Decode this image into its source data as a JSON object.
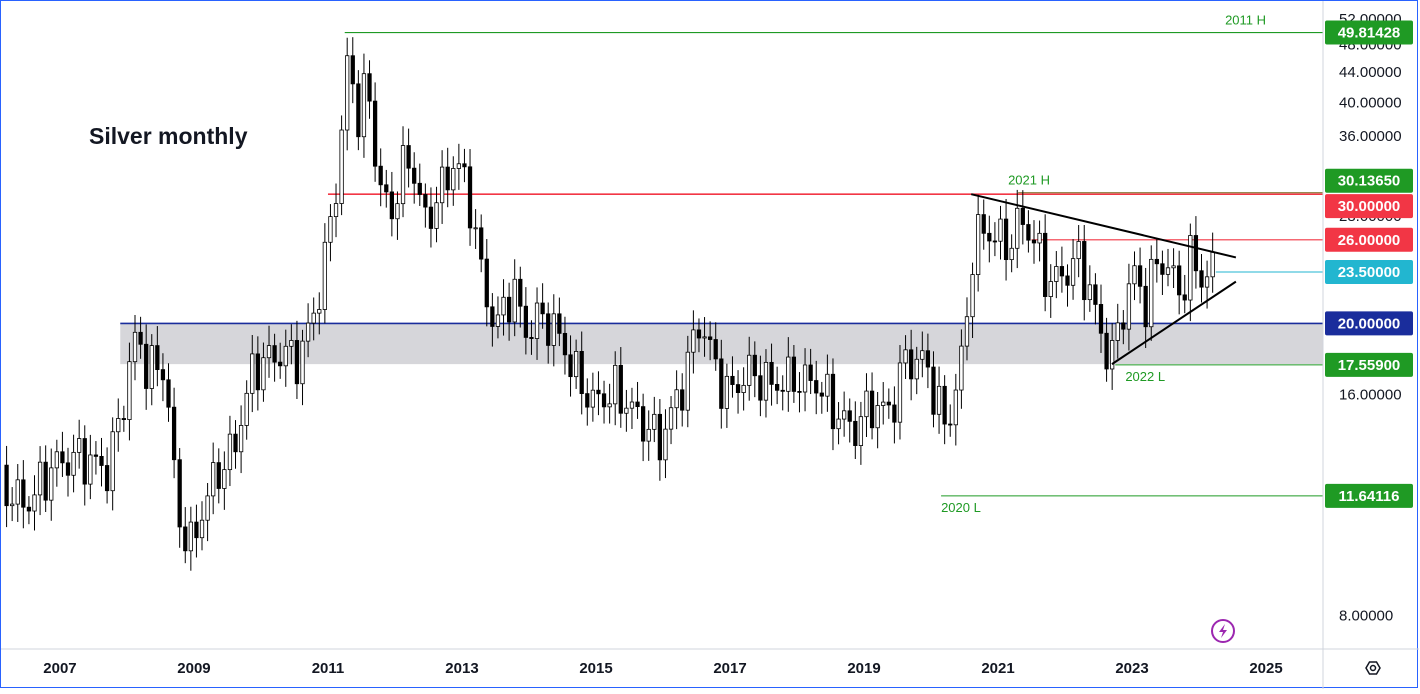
{
  "chart_data": {
    "type": "candlestick",
    "title": "Silver monthly",
    "y_axis": {
      "scale": "log",
      "range": [
        7.2,
        55.0
      ],
      "position": "right",
      "ticks": [
        "52.00000",
        "48.00000",
        "44.00000",
        "40.00000",
        "36.00000",
        "28.00000",
        "16.00000",
        "8.00000"
      ],
      "tick_values": [
        52,
        48,
        44,
        40,
        36,
        28,
        16,
        8
      ]
    },
    "x_axis": {
      "ticks": [
        "2007",
        "2009",
        "2011",
        "2013",
        "2015",
        "2017",
        "2019",
        "2021",
        "2023",
        "2025"
      ],
      "tick_values": [
        2007,
        2009,
        2011,
        2013,
        2015,
        2017,
        2019,
        2021,
        2023,
        2025
      ],
      "range": [
        2006.12,
        2025.85
      ]
    },
    "grid": false,
    "price_tags": [
      {
        "label": "49.81428",
        "value": 49.81428,
        "color": "#1f9a24"
      },
      {
        "label": "30.13650",
        "value": 30.1365,
        "color": "#1f9a24"
      },
      {
        "label": "30.00000",
        "value": 30.0,
        "color": "#f23645"
      },
      {
        "label": "26.00000",
        "value": 26.0,
        "color": "#f23645"
      },
      {
        "label": "23.50000",
        "value": 23.5,
        "color": "#22b6d0"
      },
      {
        "label": "20.00000",
        "value": 20.0,
        "color": "#1a2d9c"
      },
      {
        "label": "17.55900",
        "value": 17.559,
        "color": "#1f9a24"
      },
      {
        "label": "11.64116",
        "value": 11.64116,
        "color": "#1f9a24"
      }
    ],
    "annotations": [
      {
        "text": "2011 H",
        "x": 2025.0,
        "value": 49.81428,
        "color": "#1f9a24"
      },
      {
        "text": "2021 H",
        "x": 2021.15,
        "value": 30.1365,
        "color": "#1f9a24"
      },
      {
        "text": "2022 L",
        "x": 2022.9,
        "value": 17.559,
        "color": "#1f9a24"
      },
      {
        "text": "2020 L",
        "x": 2020.15,
        "value": 11.64116,
        "color": "#1f9a24"
      }
    ],
    "horizontal_lines": [
      {
        "value": 49.81428,
        "from": 2011.25,
        "to": 2025.85,
        "color": "#1f9a24"
      },
      {
        "value": 30.0,
        "from": 2011.0,
        "to": 2025.85,
        "color": "#f23645"
      },
      {
        "value": 30.1365,
        "from": 2021.3,
        "to": 2025.85,
        "color": "#8a7a3a"
      },
      {
        "value": 26.0,
        "from": 2021.5,
        "to": 2025.85,
        "color": "#f23645"
      },
      {
        "value": 23.5,
        "from": 2024.25,
        "to": 2025.85,
        "color": "#22b6d0"
      },
      {
        "value": 20.0,
        "from": 2007.9,
        "to": 2025.85,
        "color": "#1a2d9c"
      },
      {
        "value": 17.559,
        "from": 2022.75,
        "to": 2025.85,
        "color": "#1f9a24"
      },
      {
        "value": 11.64116,
        "from": 2020.15,
        "to": 2025.85,
        "color": "#1f9a24"
      }
    ],
    "zone": {
      "from_value": 17.6,
      "to_value": 20.0,
      "x_from": 2007.9,
      "x_to": 2025.85,
      "color": "#d6d6da"
    },
    "trendlines": [
      {
        "x1": 2020.6,
        "y1": 30.0,
        "x2": 2024.55,
        "y2": 24.6,
        "color": "#000000"
      },
      {
        "x1": 2022.7,
        "y1": 17.6,
        "x2": 2024.55,
        "y2": 22.8,
        "color": "#000000"
      }
    ],
    "monthly_close": [
      [
        2006.12,
        12.0
      ],
      [
        2006.5,
        11.3
      ],
      [
        2006.9,
        12.8
      ],
      [
        2007.3,
        13.2
      ],
      [
        2007.7,
        12.6
      ],
      [
        2007.9,
        14.8
      ],
      [
        2008.15,
        19.5
      ],
      [
        2008.3,
        17.3
      ],
      [
        2008.55,
        17.5
      ],
      [
        2008.75,
        11.0
      ],
      [
        2008.95,
        9.9
      ],
      [
        2009.3,
        12.3
      ],
      [
        2009.6,
        13.5
      ],
      [
        2009.9,
        17.5
      ],
      [
        2010.3,
        18.2
      ],
      [
        2010.6,
        18.0
      ],
      [
        2010.9,
        22.5
      ],
      [
        2011.05,
        28.0
      ],
      [
        2011.2,
        35.0
      ],
      [
        2011.3,
        47.0
      ],
      [
        2011.45,
        38.0
      ],
      [
        2011.6,
        42.5
      ],
      [
        2011.75,
        30.5
      ],
      [
        2011.95,
        28.5
      ],
      [
        2012.2,
        34.0
      ],
      [
        2012.45,
        27.5
      ],
      [
        2012.7,
        30.5
      ],
      [
        2012.9,
        33.5
      ],
      [
        2013.1,
        30.0
      ],
      [
        2013.3,
        23.0
      ],
      [
        2013.5,
        19.5
      ],
      [
        2013.75,
        22.5
      ],
      [
        2013.95,
        19.5
      ],
      [
        2014.2,
        20.5
      ],
      [
        2014.45,
        19.2
      ],
      [
        2014.7,
        17.0
      ],
      [
        2014.95,
        15.6
      ],
      [
        2015.3,
        16.2
      ],
      [
        2015.6,
        15.0
      ],
      [
        2015.95,
        13.8
      ],
      [
        2016.25,
        16.0
      ],
      [
        2016.55,
        20.2
      ],
      [
        2016.8,
        17.3
      ],
      [
        2016.95,
        16.0
      ],
      [
        2017.3,
        17.2
      ],
      [
        2017.6,
        16.5
      ],
      [
        2017.95,
        16.8
      ],
      [
        2018.3,
        16.6
      ],
      [
        2018.6,
        15.0
      ],
      [
        2018.85,
        14.3
      ],
      [
        2019.1,
        15.5
      ],
      [
        2019.4,
        15.1
      ],
      [
        2019.6,
        17.8
      ],
      [
        2019.9,
        17.8
      ],
      [
        2020.2,
        14.5
      ],
      [
        2020.3,
        15.2
      ],
      [
        2020.5,
        18.5
      ],
      [
        2020.6,
        24.5
      ],
      [
        2020.75,
        27.0
      ],
      [
        2020.95,
        26.3
      ],
      [
        2021.15,
        25.5
      ],
      [
        2021.35,
        27.8
      ],
      [
        2021.55,
        25.8
      ],
      [
        2021.75,
        22.7
      ],
      [
        2021.95,
        23.2
      ],
      [
        2022.2,
        24.5
      ],
      [
        2022.35,
        22.5
      ],
      [
        2022.55,
        19.0
      ],
      [
        2022.7,
        18.0
      ],
      [
        2022.9,
        21.5
      ],
      [
        2023.05,
        23.5
      ],
      [
        2023.2,
        21.2
      ],
      [
        2023.4,
        24.8
      ],
      [
        2023.55,
        23.5
      ],
      [
        2023.75,
        22.0
      ],
      [
        2023.9,
        25.0
      ],
      [
        2024.05,
        22.8
      ],
      [
        2024.2,
        23.6
      ]
    ]
  },
  "watermark": {
    "icon": "lightning-icon",
    "color": "#9c27b0"
  },
  "settings": {
    "icon": "gear-icon"
  }
}
